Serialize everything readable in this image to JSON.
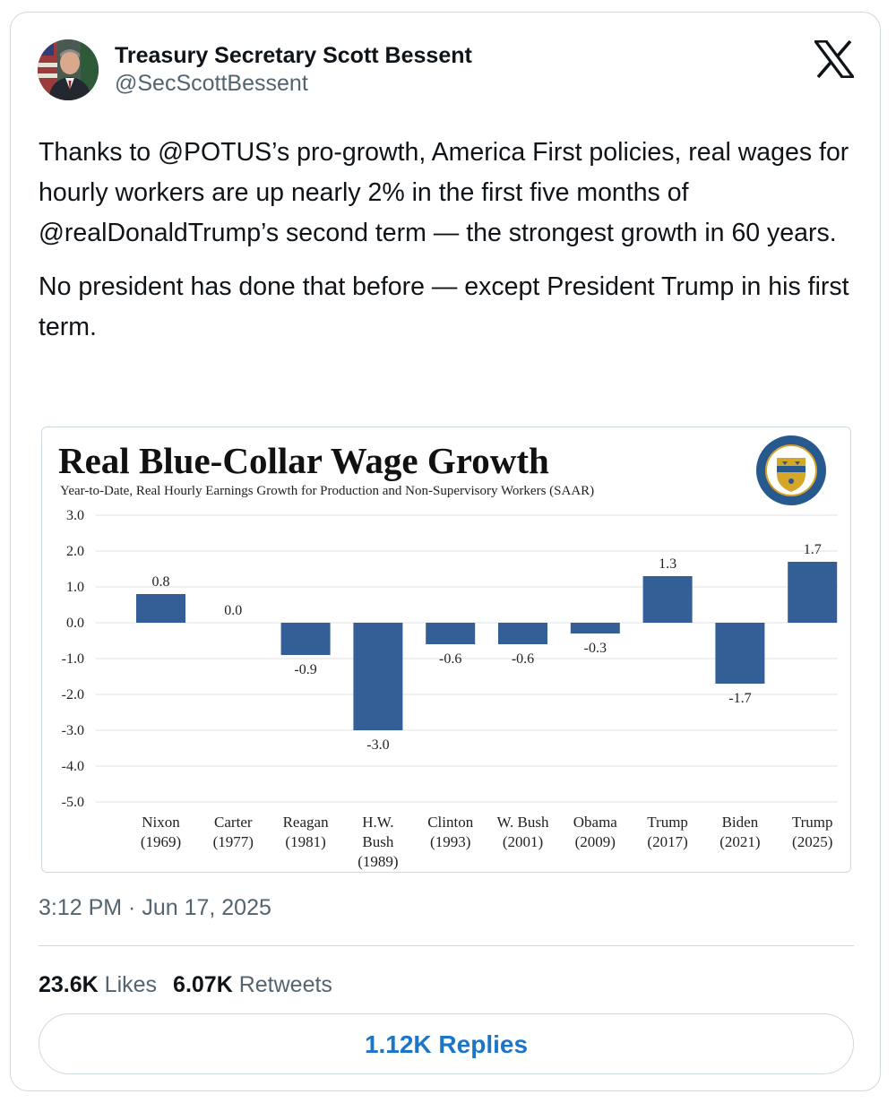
{
  "author": {
    "name": "Treasury Secretary Scott Bessent",
    "handle": "@SecScottBessent"
  },
  "icons": {
    "platform": "x-logo-icon",
    "avatar": "avatar-photo",
    "seal": "treasury-seal-icon"
  },
  "tweet": {
    "paragraphs": [
      "Thanks to @POTUS’s pro-growth, America First policies, real wages for hourly workers are up nearly 2% in the first five months of @realDonaldTrump’s second term — the strongest growth in 60 years.",
      "No president has done that before — except President Trump in his first term."
    ],
    "timestamp": "3:12 PM · Jun 17, 2025"
  },
  "stats": {
    "likes_count": "23.6K",
    "likes_label": "Likes",
    "retweets_count": "6.07K",
    "retweets_label": "Retweets"
  },
  "replies_button": "1.12K Replies",
  "colors": {
    "bar": "#335f96",
    "link_blue": "#1d75c8",
    "secondary_text": "#536471",
    "border": "#cfd9de",
    "seal_blue": "#27598f",
    "seal_gold": "#d4a62a"
  },
  "chart_data": {
    "type": "bar",
    "title": "Real Blue-Collar Wage Growth",
    "subtitle": "Year-to-Date, Real Hourly Earnings Growth for Production and Non-Supervisory Workers (SAAR)",
    "categories": [
      [
        "Nixon",
        "(1969)"
      ],
      [
        "Carter",
        "(1977)"
      ],
      [
        "Reagan",
        "(1981)"
      ],
      [
        "H.W.",
        "Bush",
        "(1989)"
      ],
      [
        "Clinton",
        "(1993)"
      ],
      [
        "W. Bush",
        "(2001)"
      ],
      [
        "Obama",
        "(2009)"
      ],
      [
        "Trump",
        "(2017)"
      ],
      [
        "Biden",
        "(2021)"
      ],
      [
        "Trump",
        "(2025)"
      ]
    ],
    "values": [
      0.8,
      0.0,
      -0.9,
      -3.0,
      -0.6,
      -0.6,
      -0.3,
      1.3,
      -1.7,
      1.7
    ],
    "value_labels": [
      "0.8",
      "0.0",
      "-0.9",
      "-3.0",
      "-0.6",
      "-0.6",
      "-0.3",
      "1.3",
      "-1.7",
      "1.7"
    ],
    "yticks": [
      "3.0",
      "2.0",
      "1.0",
      "0.0",
      "-1.0",
      "-2.0",
      "-3.0",
      "-4.0",
      "-5.0"
    ],
    "ylim": [
      -5,
      3
    ],
    "grid": true,
    "xlabel": "",
    "ylabel": ""
  }
}
